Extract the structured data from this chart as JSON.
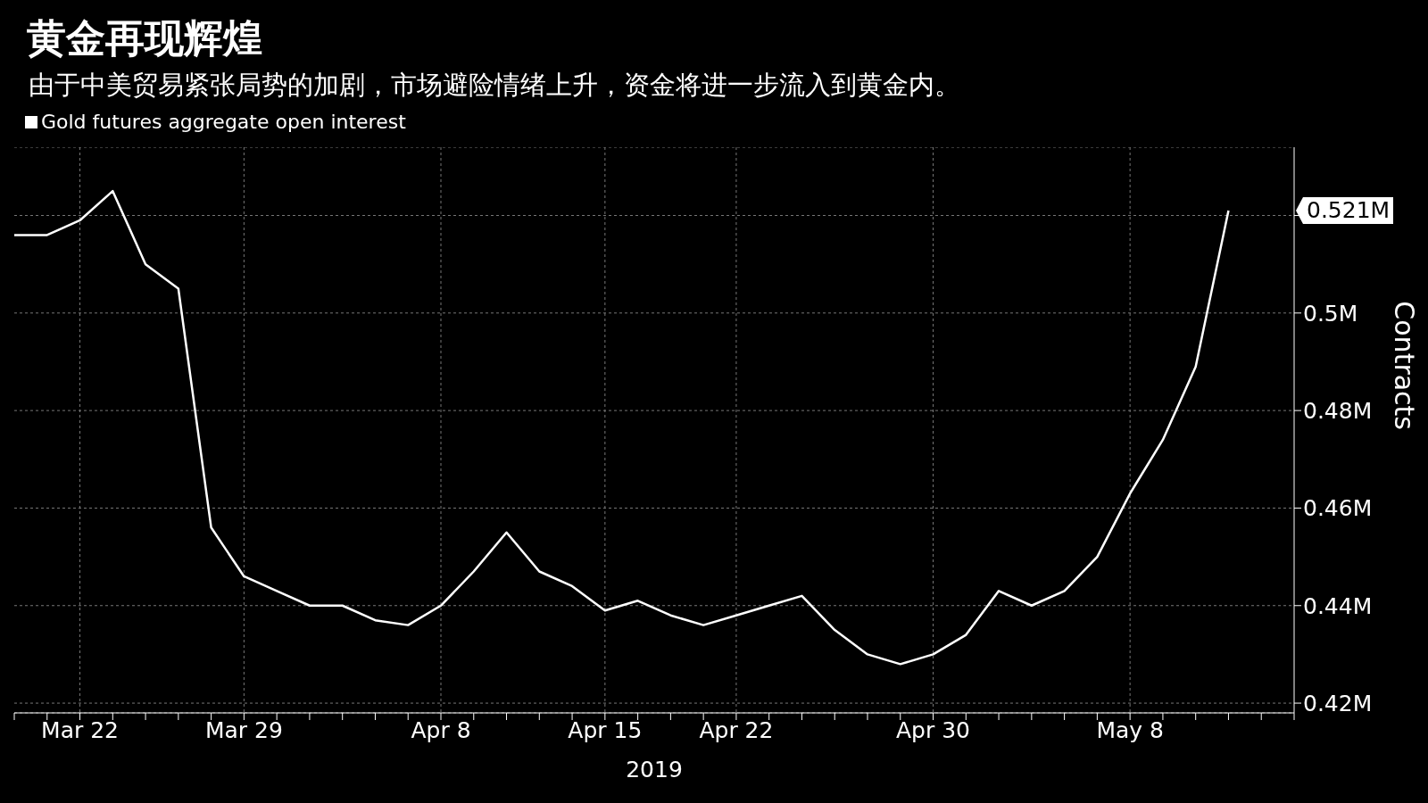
{
  "chart_data": {
    "type": "line",
    "title": "黄金再现辉煌",
    "subtitle": "由于中美贸易紧张局势的加剧，市场避险情绪上升，资金将进一步流入到黄金内。",
    "categories": [
      null,
      null,
      "Mar 22",
      null,
      null,
      null,
      null,
      "Mar 29",
      null,
      null,
      null,
      null,
      null,
      "Apr 8",
      null,
      null,
      null,
      null,
      "Apr 15",
      null,
      null,
      null,
      "Apr 22",
      null,
      null,
      null,
      null,
      null,
      "Apr 30",
      null,
      null,
      null,
      null,
      null,
      "May 8",
      null,
      null,
      null,
      null,
      null
    ],
    "xlabel": "2019",
    "ylabel": "Contracts",
    "series": [
      {
        "name": "Gold futures aggregate open interest",
        "color": "#ffffff",
        "values": [
          0.516,
          0.516,
          0.519,
          0.525,
          0.51,
          0.505,
          0.456,
          0.446,
          0.443,
          0.44,
          0.44,
          0.437,
          0.436,
          0.44,
          0.447,
          0.455,
          0.447,
          0.444,
          0.439,
          0.441,
          0.438,
          0.436,
          0.438,
          0.44,
          0.442,
          0.435,
          0.43,
          0.428,
          0.43,
          0.434,
          0.443,
          0.44,
          0.443,
          0.45,
          0.463,
          0.474,
          0.489,
          0.521,
          null,
          null
        ]
      }
    ],
    "annotations": [
      "0.521M"
    ],
    "ylim": [
      0.418,
      0.534
    ],
    "yticks": [
      {
        "value": 0.42,
        "label": "0.42M"
      },
      {
        "value": 0.44,
        "label": "0.44M"
      },
      {
        "value": 0.46,
        "label": "0.46M"
      },
      {
        "value": 0.48,
        "label": "0.48M"
      },
      {
        "value": 0.5,
        "label": "0.5M"
      },
      {
        "value": 0.52,
        "label": null
      }
    ],
    "grid": true,
    "legend": "top left"
  }
}
